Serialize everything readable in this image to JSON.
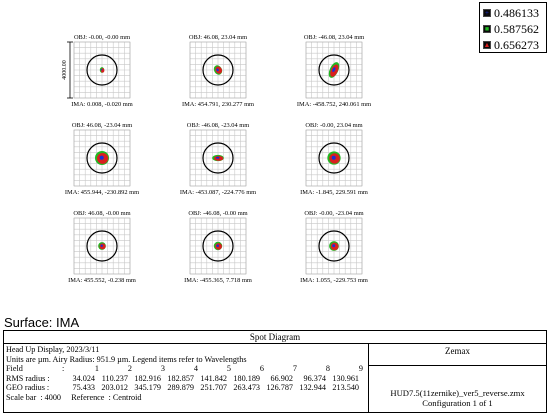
{
  "scale_bar_label": "4000.00",
  "legend": [
    {
      "value": "0.486133",
      "color": "#1a2fd6",
      "marker": "+",
      "icon": "plus-marker-icon"
    },
    {
      "value": "0.587562",
      "color": "#22b822",
      "marker": "■",
      "icon": "square-marker-icon"
    },
    {
      "value": "0.656273",
      "color": "#d91f1f",
      "marker": "▲",
      "icon": "triangle-marker-icon"
    }
  ],
  "spots": [
    {
      "obj": "OBJ: -0.00, -0.00 mm",
      "ima": "IMA: 0.008, -0.020 mm",
      "circle_scale": 1.0,
      "blob_scale": 0.45,
      "shape": "square"
    },
    {
      "obj": "OBJ: 46.08, 23.04 mm",
      "ima": "IMA: 454.791, 230.277 mm",
      "circle_scale": 1.0,
      "blob_scale": 0.7,
      "shape": "tilted"
    },
    {
      "obj": "OBJ: -46.08, 23.04 mm",
      "ima": "IMA: -458.752, 240.061 mm",
      "circle_scale": 1.0,
      "blob_scale": 1.1,
      "shape": "elongated"
    },
    {
      "obj": "OBJ: 46.08, -23.04 mm",
      "ima": "IMA: 455.944, -230.892 mm",
      "circle_scale": 1.0,
      "blob_scale": 1.0,
      "shape": "round"
    },
    {
      "obj": "OBJ: -46.08, -23.04 mm",
      "ima": "IMA: -453.087, -224.776 mm",
      "circle_scale": 1.0,
      "blob_scale": 0.75,
      "shape": "wide"
    },
    {
      "obj": "OBJ: -0.00, 23.04 mm",
      "ima": "IMA: -1.845, 229.591 mm",
      "circle_scale": 1.0,
      "blob_scale": 0.95,
      "shape": "round"
    },
    {
      "obj": "OBJ: 46.08, -0.00 mm",
      "ima": "IMA: 455.552, -0.238 mm",
      "circle_scale": 1.0,
      "blob_scale": 0.55,
      "shape": "small"
    },
    {
      "obj": "OBJ: -46.08, -0.00 mm",
      "ima": "IMA: -455.365, 7.718 mm",
      "circle_scale": 1.0,
      "blob_scale": 0.6,
      "shape": "small"
    },
    {
      "obj": "OBJ: -0.00, -23.04 mm",
      "ima": "IMA: 1.055, -229.753 mm",
      "circle_scale": 1.0,
      "blob_scale": 0.7,
      "shape": "round"
    }
  ],
  "surface_label": "Surface: IMA",
  "panel": {
    "title": "Spot Diagram",
    "line1": "Head Up Display, 2023/3/11",
    "line2": "Units are µm. Airy Radius: 951.9 µm. Legend items refer to Wavelengths",
    "field_label": "Field",
    "field_values": [
      "1",
      "2",
      "3",
      "4",
      "5",
      "6",
      "7",
      "8",
      "9"
    ],
    "rms_label": "RMS radius :",
    "rms_values": [
      "34.024",
      "110.237",
      "182.916",
      "182.857",
      "141.842",
      "180.189",
      "66.902",
      "96.374",
      "130.961"
    ],
    "geo_label": "GEO radius :",
    "geo_values": [
      "75.433",
      "203.012",
      "345.179",
      "289.879",
      "251.707",
      "263.473",
      "126.787",
      "132.944",
      "213.540"
    ],
    "scale_line": "Scale bar  : 4000     Reference  : Centroid",
    "brand": "Zemax",
    "file": "HUD7.5(11zernike)_ver5_reverse.zmx",
    "config": "Configuration 1 of 1"
  }
}
